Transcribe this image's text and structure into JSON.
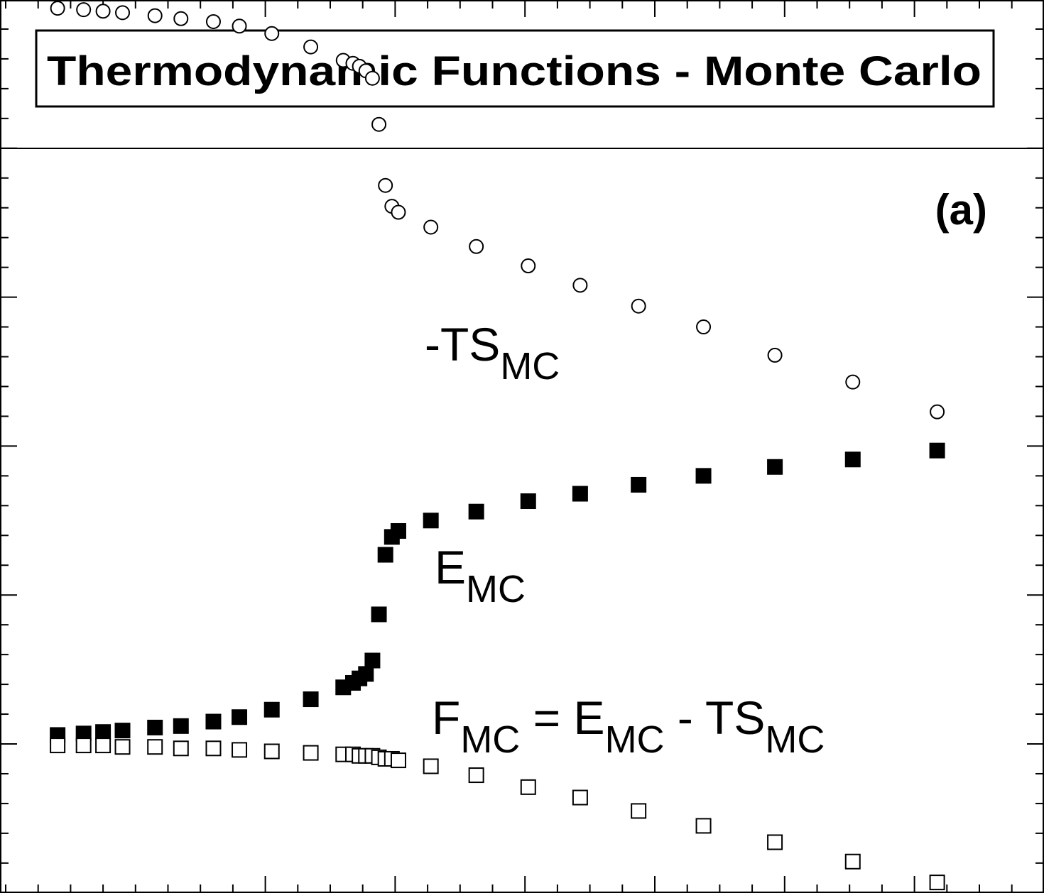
{
  "title": "Thermodynamic Functions - Monte Carlo",
  "panel_label": "(a)",
  "colors": {
    "ink": "#000000",
    "background": "#ffffff",
    "open_marker_fill": "#ffffff"
  },
  "labels": {
    "minus_ts": {
      "main": "-TS",
      "sub": "MC"
    },
    "e": {
      "main": "E",
      "sub": "MC"
    },
    "f": {
      "f": "F",
      "f_sub": "MC",
      "equals": " = E",
      "e_sub": "MC",
      "minus": " - TS",
      "ts_sub": "MC"
    }
  },
  "chart_data": {
    "type": "scatter",
    "title": "Thermodynamic Functions - Monte Carlo",
    "xlabel": "",
    "ylabel": "",
    "axis_numbers_printed": false,
    "xlim": [
      0,
      16
    ],
    "ylim": [
      -1.0,
      5.0
    ],
    "x": [
      0.8,
      1.2,
      1.5,
      1.8,
      2.3,
      2.7,
      3.2,
      3.6,
      4.1,
      4.7,
      5.2,
      5.35,
      5.45,
      5.55,
      5.65,
      5.75,
      5.85,
      5.95,
      6.05,
      6.55,
      7.25,
      8.05,
      8.85,
      9.75,
      10.75,
      11.85,
      13.05,
      14.35
    ],
    "series": [
      {
        "name": "-TS",
        "marker": "open-circle",
        "values": [
          4.94,
          4.93,
          4.92,
          4.91,
          4.89,
          4.87,
          4.85,
          4.82,
          4.77,
          4.68,
          4.59,
          4.57,
          4.55,
          4.52,
          4.47,
          4.16,
          3.75,
          3.61,
          3.57,
          3.47,
          3.34,
          3.21,
          3.08,
          2.94,
          2.8,
          2.61,
          2.43,
          2.23
        ]
      },
      {
        "name": "E",
        "marker": "filled-square",
        "values": [
          0.06,
          0.07,
          0.08,
          0.09,
          0.11,
          0.12,
          0.15,
          0.18,
          0.23,
          0.3,
          0.38,
          0.41,
          0.44,
          0.47,
          0.56,
          0.87,
          1.27,
          1.39,
          1.43,
          1.5,
          1.56,
          1.63,
          1.68,
          1.74,
          1.8,
          1.86,
          1.91,
          1.97
        ]
      },
      {
        "name": "F = E - TS",
        "marker": "open-square",
        "values": [
          -0.01,
          -0.01,
          -0.01,
          -0.02,
          -0.02,
          -0.03,
          -0.03,
          -0.04,
          -0.05,
          -0.06,
          -0.07,
          -0.07,
          -0.08,
          -0.08,
          -0.08,
          -0.09,
          -0.1,
          -0.1,
          -0.11,
          -0.15,
          -0.21,
          -0.29,
          -0.36,
          -0.45,
          -0.55,
          -0.66,
          -0.79,
          -0.93
        ]
      }
    ],
    "y_major_ticks": [
      0,
      1,
      2,
      3,
      4
    ],
    "x_major_ticks": [
      4,
      6,
      8,
      10,
      12,
      14
    ],
    "grid": false,
    "legend": "none (inline text labels)",
    "panel": "(a)"
  }
}
